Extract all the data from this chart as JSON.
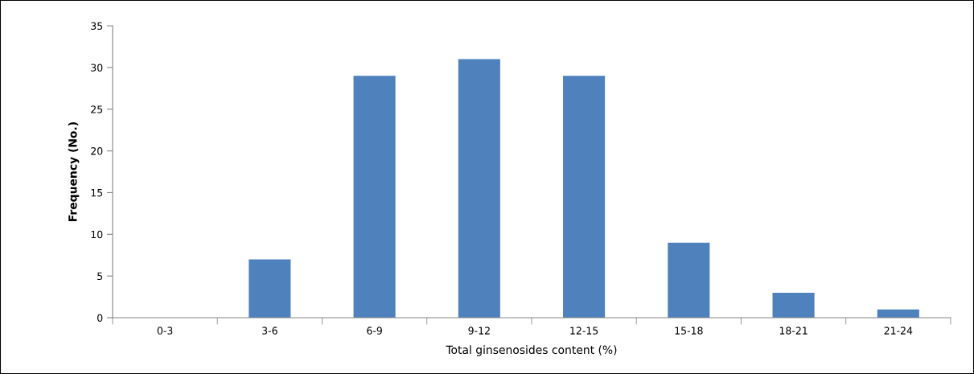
{
  "chart_data": {
    "type": "bar",
    "xlabel": "Total ginsenosides content (%)",
    "ylabel": "Frequency (No.)",
    "categories": [
      "0-3",
      "3-6",
      "6-9",
      "9-12",
      "12-15",
      "15-18",
      "18-21",
      "21-24"
    ],
    "values": [
      0,
      7,
      29,
      31,
      29,
      9,
      3,
      1
    ],
    "color": "#4f81bd",
    "ylim": [
      0,
      35
    ],
    "yticks": [
      0,
      5,
      10,
      15,
      20,
      25,
      30,
      35
    ],
    "grid": false,
    "legend": false
  }
}
